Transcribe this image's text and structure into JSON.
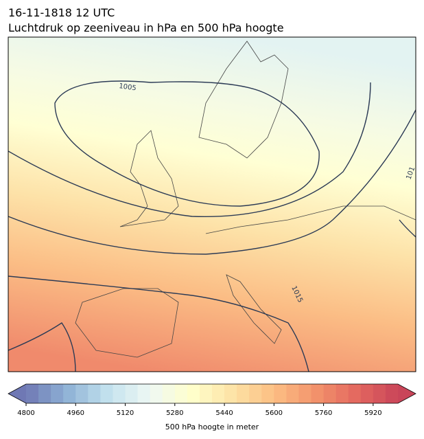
{
  "header": {
    "title_line1": "16-11-1818 12 UTC",
    "title_line2": "Luchtdruk op zeeniveau in hPa en 500 hPa hoogte"
  },
  "map": {
    "contour_labels": [
      "1005",
      "1015",
      "101"
    ]
  },
  "colorbar": {
    "label": "500 hPa hoogte in meter",
    "clim": [
      4800,
      6000
    ],
    "ticks": [
      4800,
      4960,
      5120,
      5280,
      5440,
      5600,
      5760,
      5920
    ],
    "levels": [
      4800,
      4840,
      4880,
      4920,
      4960,
      5000,
      5040,
      5080,
      5120,
      5160,
      5200,
      5240,
      5280,
      5320,
      5360,
      5400,
      5440,
      5480,
      5520,
      5560,
      5600,
      5640,
      5680,
      5720,
      5760,
      5800,
      5840,
      5880,
      5920,
      5960,
      6000
    ],
    "colormap": [
      "#6f78b4",
      "#8fb3d6",
      "#c4e2ee",
      "#eef8f4",
      "#ffffcc",
      "#fde3a6",
      "#fcbf83",
      "#f3936c",
      "#e3685f",
      "#c94559"
    ]
  }
}
